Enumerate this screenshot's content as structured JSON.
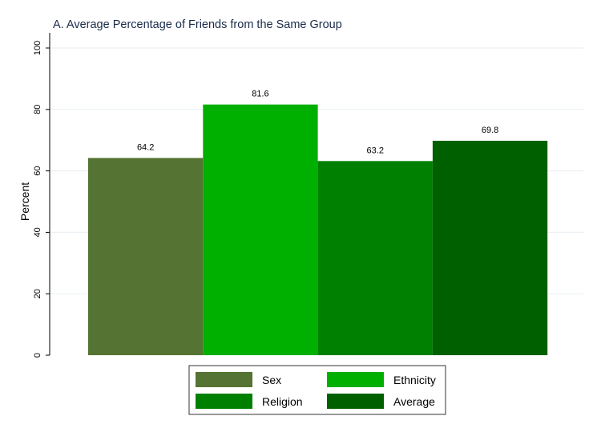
{
  "chart_data": {
    "type": "bar",
    "title": "A. Average Percentage of Friends from the Same Group",
    "xlabel": "",
    "ylabel": "Percent",
    "ylim": [
      0,
      100
    ],
    "yticks": [
      0,
      20,
      40,
      60,
      80,
      100
    ],
    "grid": true,
    "legend_position": "bottom",
    "series": [
      {
        "name": "Sex",
        "value": 64.2,
        "label": "64.2",
        "color": "#557332"
      },
      {
        "name": "Ethnicity",
        "value": 81.6,
        "label": "81.6",
        "color": "#00b000"
      },
      {
        "name": "Religion",
        "value": 63.2,
        "label": "63.2",
        "color": "#008000"
      },
      {
        "name": "Average",
        "value": 69.8,
        "label": "69.8",
        "color": "#006000"
      }
    ]
  }
}
